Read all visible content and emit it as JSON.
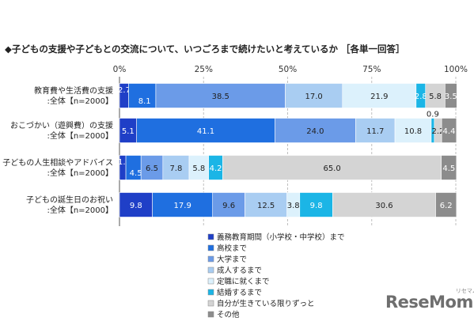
{
  "chart_data": {
    "type": "bar",
    "orientation": "horizontal-stacked-100",
    "title": "◆子どもの支援や子どもとの交流について、いつごろまで続けたいと考えているか ［各単一回答］",
    "xlim": [
      0,
      100
    ],
    "x_ticks": [
      "0%",
      "25%",
      "50%",
      "75%",
      "100%"
    ],
    "categories": [
      [
        "教育費や生活費の支援",
        ":全体【n=2000】"
      ],
      [
        "おこづかい（遊興費）の支援",
        ":全体【n=2000】"
      ],
      [
        "子どもの人生相談やアドバイス",
        ":全体【n=2000】"
      ],
      [
        "子どもの誕生日のお祝い",
        ":全体【n=2000】"
      ]
    ],
    "series": [
      {
        "name": "義務教育期間（小学校・中学校）まで",
        "color": "#1f3fc7",
        "values": [
          2.7,
          5.1,
          1.9,
          9.8
        ]
      },
      {
        "name": "高校まで",
        "color": "#1f6fe0",
        "values": [
          8.1,
          41.1,
          4.5,
          17.9
        ]
      },
      {
        "name": "大学まで",
        "color": "#6b9be8",
        "values": [
          38.5,
          24.0,
          6.5,
          9.6
        ]
      },
      {
        "name": "成人するまで",
        "color": "#a9cdf2",
        "values": [
          17.0,
          11.7,
          7.8,
          12.5
        ]
      },
      {
        "name": "定職に就くまで",
        "color": "#dcf1fc",
        "values": [
          21.9,
          10.8,
          5.8,
          3.8
        ]
      },
      {
        "name": "結婚するまで",
        "color": "#1bb5e6",
        "values": [
          2.8,
          0.9,
          4.2,
          9.8
        ]
      },
      {
        "name": "自分が生きている限りずっと",
        "color": "#d4d4d4",
        "values": [
          5.8,
          2.2,
          65.0,
          30.6
        ]
      },
      {
        "name": "その他",
        "color": "#8c8c8c",
        "values": [
          3.5,
          4.4,
          4.5,
          6.2
        ]
      }
    ],
    "data_labels": [
      [
        "2.7",
        "8.1",
        "38.5",
        "17.0",
        "21.9",
        "2.8",
        "5.8",
        "3.5"
      ],
      [
        "5.1",
        "41.1",
        "24.0",
        "11.7",
        "10.8",
        "0.9",
        "2.2",
        "4.4"
      ],
      [
        "1.9",
        "4.5",
        "6.5",
        "7.8",
        "5.8",
        "4.2",
        "65.0",
        "4.5"
      ],
      [
        "9.8",
        "17.9",
        "9.6",
        "12.5",
        "3.8",
        "9.8",
        "30.6",
        "6.2"
      ]
    ],
    "legend_position": "bottom-center"
  },
  "watermark": {
    "text": "ReseMom",
    "sub": "リセマム"
  }
}
